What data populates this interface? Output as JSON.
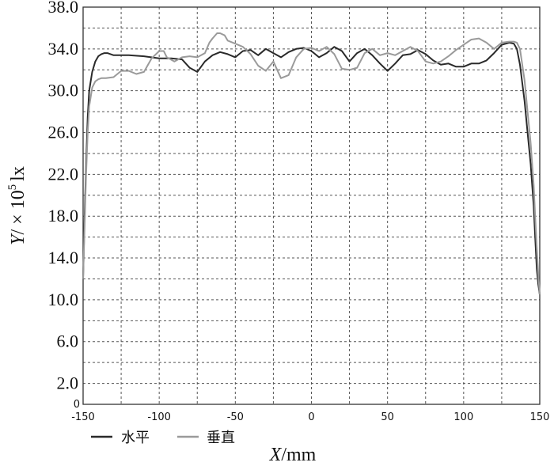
{
  "chart_data": {
    "type": "line",
    "xlabel_var": "X",
    "xlabel_unit": "/mm",
    "ylabel_var": "Y",
    "ylabel_unit": "/ × 10",
    "ylabel_exp": "5",
    "ylabel_unit2": "lx",
    "xlim": [
      -150,
      150
    ],
    "ylim": [
      0,
      38
    ],
    "x_ticks": [
      "-150",
      "-100",
      "-50",
      "0",
      "50",
      "100",
      "150"
    ],
    "y_ticks": [
      "2.0",
      "6.0",
      "10.0",
      "14.0",
      "18.0",
      "22.0",
      "26.0",
      "30.0",
      "34.0",
      "38.0"
    ],
    "y_tick_zero": "0",
    "grid": true,
    "legend_position": "bottom-left",
    "series": [
      {
        "name": "水平",
        "color": "#2a2a2a",
        "x": [
          -150,
          -149,
          -148,
          -147,
          -146,
          -144,
          -142,
          -140,
          -138,
          -136,
          -134,
          -130,
          -120,
          -110,
          -100,
          -92,
          -85,
          -80,
          -75,
          -70,
          -65,
          -60,
          -55,
          -50,
          -45,
          -40,
          -35,
          -30,
          -25,
          -20,
          -15,
          -10,
          -5,
          0,
          5,
          10,
          15,
          20,
          25,
          30,
          35,
          40,
          45,
          50,
          55,
          60,
          65,
          70,
          75,
          80,
          85,
          90,
          95,
          100,
          105,
          110,
          115,
          120,
          125,
          130,
          133,
          135,
          137,
          140,
          142,
          144,
          146,
          147,
          148,
          149,
          150
        ],
        "y": [
          12.0,
          18.0,
          23.0,
          27.5,
          30.0,
          31.8,
          32.8,
          33.3,
          33.5,
          33.6,
          33.6,
          33.4,
          33.4,
          33.3,
          33.1,
          33.1,
          33.0,
          32.2,
          31.8,
          32.8,
          33.4,
          33.7,
          33.5,
          33.2,
          33.8,
          33.9,
          33.4,
          34.0,
          33.6,
          33.2,
          33.7,
          34.0,
          34.1,
          33.8,
          33.2,
          33.6,
          34.2,
          33.8,
          32.8,
          33.6,
          34.0,
          33.4,
          32.6,
          31.9,
          32.6,
          33.4,
          33.5,
          33.9,
          33.5,
          32.9,
          32.5,
          32.6,
          32.3,
          32.3,
          32.6,
          32.6,
          32.9,
          33.6,
          34.4,
          34.6,
          34.5,
          34.0,
          32.5,
          29.0,
          26.0,
          23.0,
          19.0,
          16.0,
          13.0,
          11.5,
          10.5
        ]
      },
      {
        "name": "垂直",
        "color": "#9a9a9a",
        "x": [
          -150,
          -149,
          -148,
          -147,
          -146,
          -144,
          -142,
          -140,
          -138,
          -135,
          -130,
          -125,
          -120,
          -115,
          -110,
          -105,
          -100,
          -97,
          -95,
          -90,
          -85,
          -80,
          -75,
          -70,
          -67,
          -65,
          -62,
          -60,
          -57,
          -55,
          -50,
          -45,
          -40,
          -35,
          -30,
          -25,
          -20,
          -15,
          -10,
          -5,
          0,
          5,
          10,
          15,
          20,
          25,
          30,
          35,
          40,
          45,
          50,
          55,
          60,
          65,
          70,
          75,
          80,
          85,
          90,
          95,
          100,
          105,
          110,
          115,
          120,
          125,
          130,
          133,
          135,
          137,
          140,
          142,
          144,
          146,
          147,
          148,
          149,
          150
        ],
        "y": [
          12.0,
          17.0,
          22.0,
          26.0,
          28.5,
          30.3,
          30.9,
          31.1,
          31.2,
          31.2,
          31.3,
          31.9,
          31.9,
          31.6,
          31.8,
          33.1,
          33.8,
          33.8,
          33.2,
          32.8,
          33.2,
          33.3,
          33.2,
          33.6,
          34.6,
          35.0,
          35.5,
          35.5,
          35.3,
          34.8,
          34.5,
          34.2,
          33.5,
          32.4,
          31.9,
          32.8,
          31.2,
          31.5,
          33.2,
          34.0,
          34.1,
          33.8,
          34.2,
          33.5,
          32.1,
          32.0,
          32.2,
          33.6,
          34.0,
          33.4,
          33.6,
          33.4,
          33.8,
          34.2,
          33.8,
          32.8,
          32.6,
          32.8,
          33.3,
          33.9,
          34.4,
          34.9,
          35.0,
          34.6,
          34.0,
          34.6,
          34.7,
          34.7,
          34.6,
          34.0,
          31.0,
          28.0,
          25.0,
          21.0,
          18.0,
          15.0,
          12.5,
          10.5
        ]
      }
    ]
  }
}
